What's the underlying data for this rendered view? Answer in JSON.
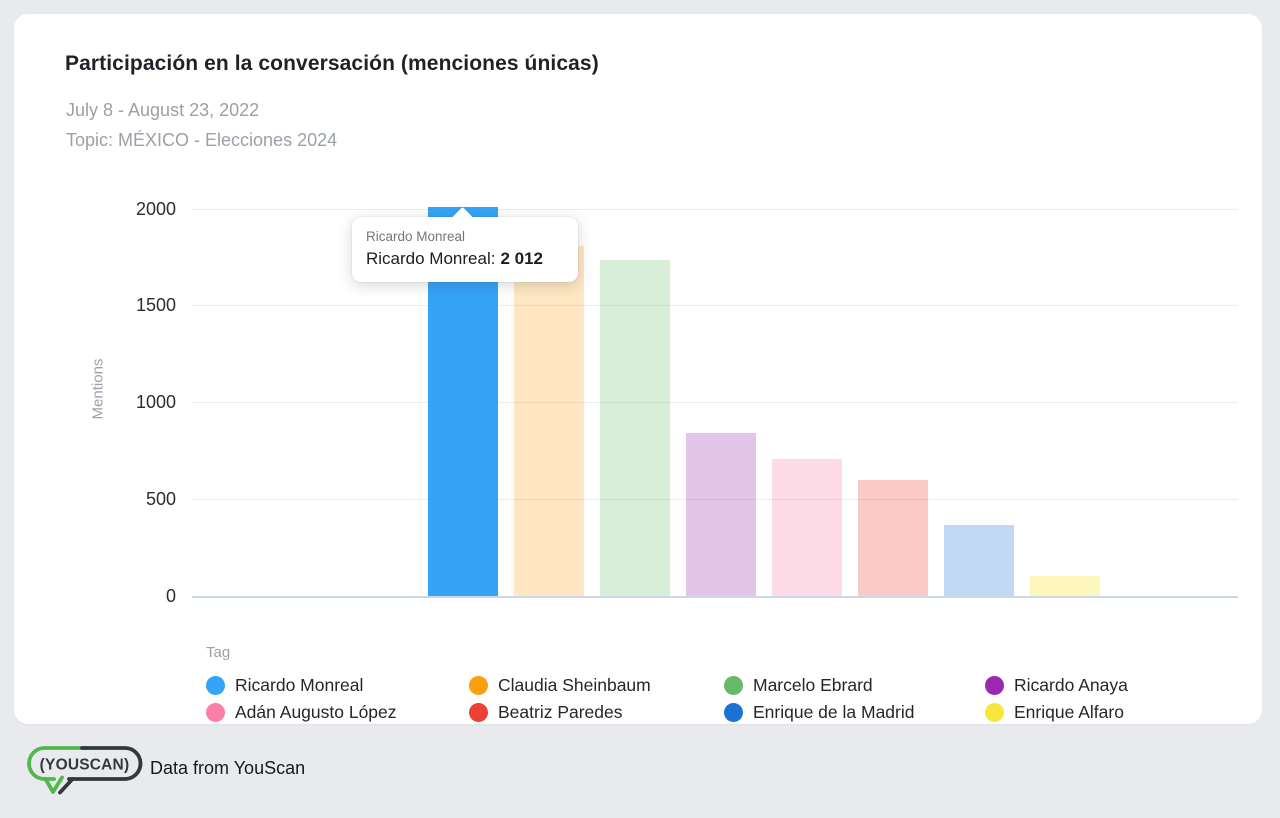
{
  "card": {
    "title": "Participación en la conversación (menciones únicas)",
    "date_range": "July 8 - August 23, 2022",
    "topic": "Topic: MÉXICO - Elecciones 2024"
  },
  "chart_data": {
    "type": "bar",
    "title": "Participación en la conversación (menciones únicas)",
    "subtitle": "July 8 - August 23, 2022 | Topic: MÉXICO - Elecciones 2024",
    "xlabel": "",
    "ylabel": "Mentions",
    "ylim": [
      0,
      2012
    ],
    "yticks": [
      0,
      500,
      1000,
      1500,
      2000
    ],
    "grid": true,
    "legend_title": "Tag",
    "legend_position": "bottom",
    "highlighted": "Ricardo Monreal",
    "categories": [
      "Ricardo Monreal",
      "Claudia Sheinbaum",
      "Marcelo Ebrard",
      "Ricardo Anaya",
      "Adán Augusto López",
      "Beatriz Paredes",
      "Enrique de la Madrid",
      "Enrique Alfaro"
    ],
    "values": [
      2012,
      1810,
      1740,
      845,
      710,
      600,
      370,
      105
    ],
    "colors": [
      "#35A4F7",
      "#FA9F0D",
      "#68BA68",
      "#9C27B0",
      "#F97FA8",
      "#EE4037",
      "#1C72D2",
      "#F8E73B"
    ],
    "bar_opacities": [
      1,
      0.25,
      0.25,
      0.27,
      0.27,
      0.28,
      0.27,
      0.33
    ]
  },
  "tooltip": {
    "header": "Ricardo Monreal",
    "label": "Ricardo Monreal:",
    "value": "2 012"
  },
  "footer": {
    "logo_text": "(YOUSCAN)",
    "caption": "Data from YouScan",
    "logo_green": "#52B84E",
    "logo_dark": "#33383A"
  },
  "ui_colors": {
    "page_background": "#E8EAED",
    "card_background": "#FFFFFF",
    "gridline": "#ECECEC",
    "axis_line": "#CBD6E8"
  }
}
